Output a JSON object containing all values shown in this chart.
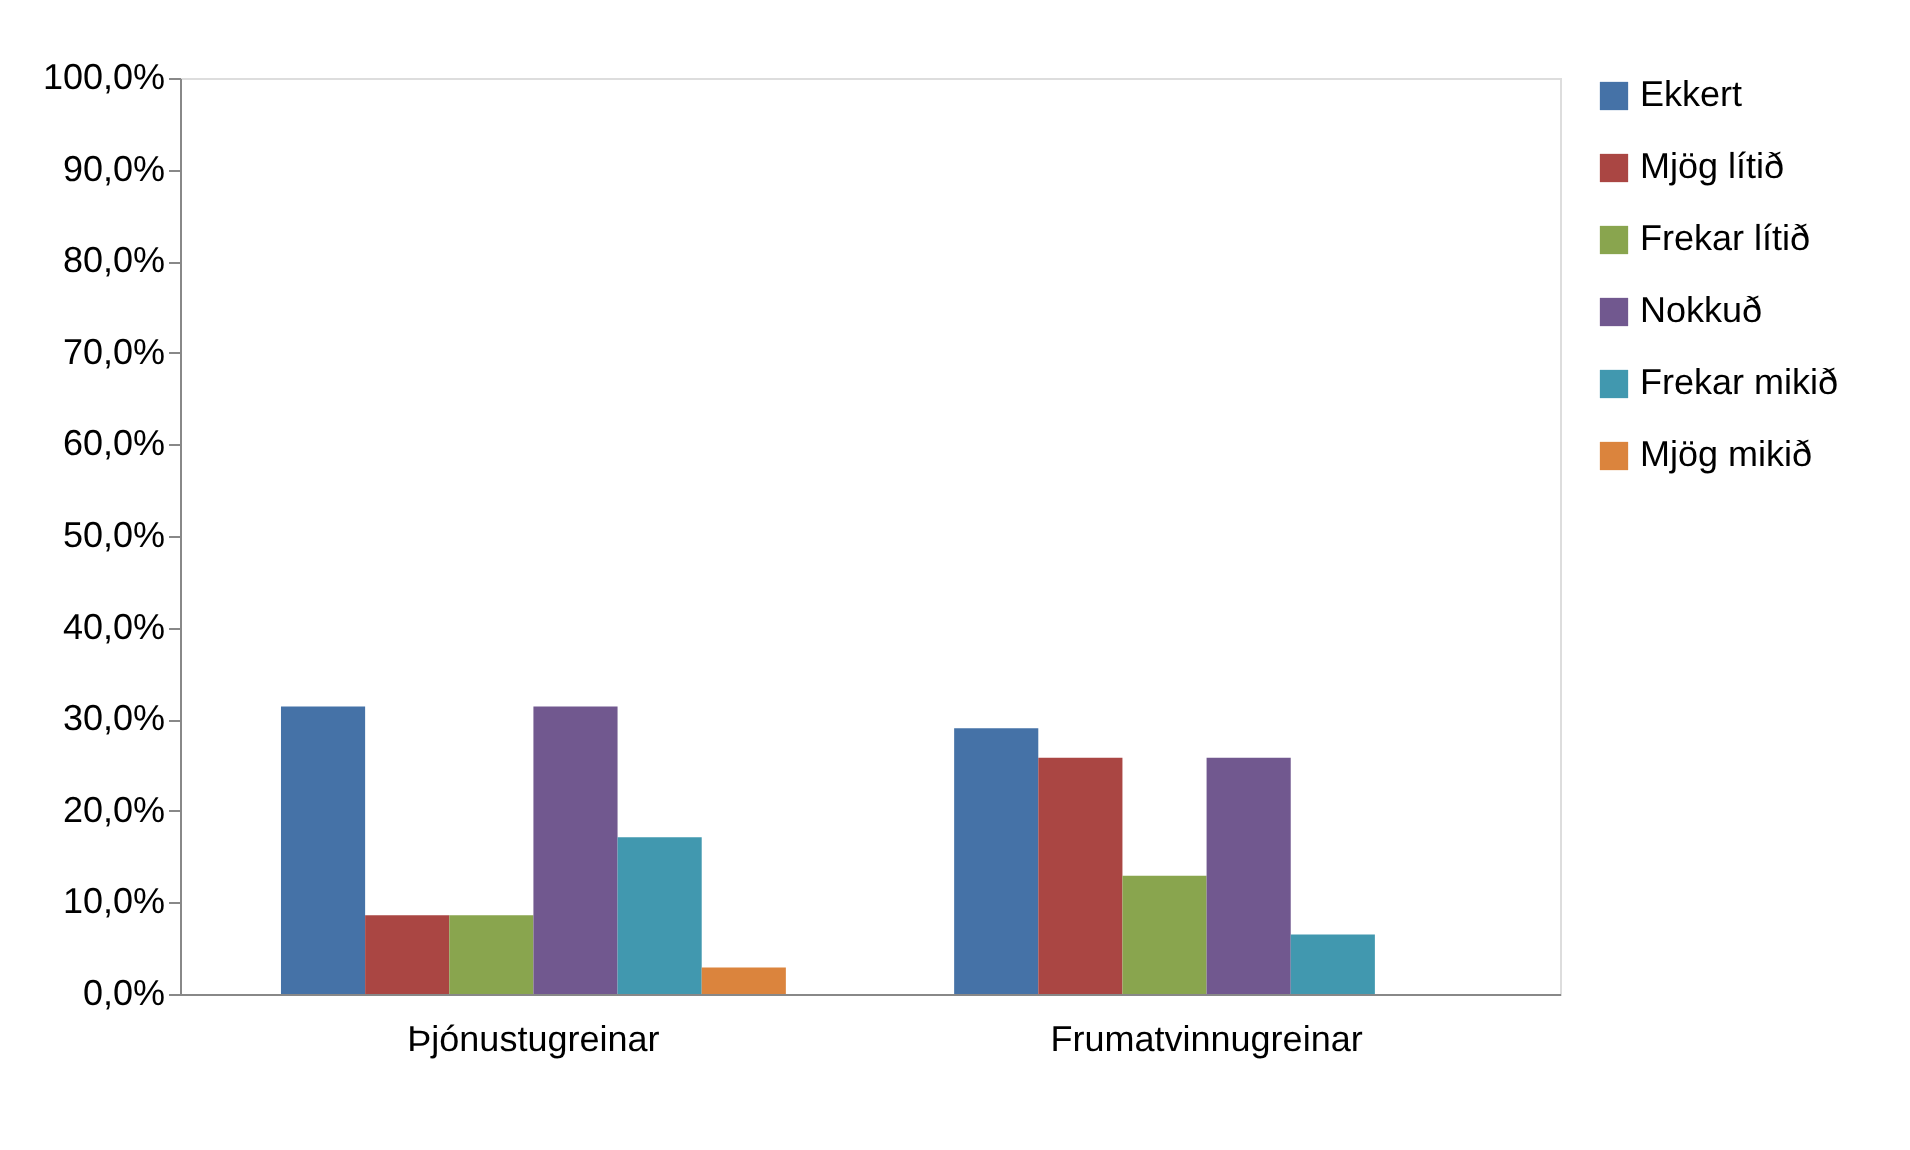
{
  "chart_data": {
    "type": "bar",
    "categories": [
      "Þjónustugreinar",
      "Frumatvinnugreinar"
    ],
    "series": [
      {
        "name": "Ekkert",
        "color": "#4572a7",
        "values": [
          31.4,
          29.0
        ]
      },
      {
        "name": "Mjög lítið",
        "color": "#aa4643",
        "values": [
          8.6,
          25.8
        ]
      },
      {
        "name": "Frekar lítið",
        "color": "#89a54e",
        "values": [
          8.6,
          12.9
        ]
      },
      {
        "name": "Nokkuð",
        "color": "#71588f",
        "values": [
          31.4,
          25.8
        ]
      },
      {
        "name": "Frekar mikið",
        "color": "#4198af",
        "values": [
          17.1,
          6.5
        ]
      },
      {
        "name": "Mjög mikið",
        "color": "#db843d",
        "values": [
          2.9,
          0
        ]
      }
    ],
    "ylim": [
      0,
      100
    ],
    "yticks": [
      {
        "value": 0,
        "label": "0,0%"
      },
      {
        "value": 10,
        "label": "10,0%"
      },
      {
        "value": 20,
        "label": "20,0%"
      },
      {
        "value": 30,
        "label": "30,0%"
      },
      {
        "value": 40,
        "label": "40,0%"
      },
      {
        "value": 50,
        "label": "50,0%"
      },
      {
        "value": 60,
        "label": "60,0%"
      },
      {
        "value": 70,
        "label": "70,0%"
      },
      {
        "value": 80,
        "label": "80,0%"
      },
      {
        "value": 90,
        "label": "90,0%"
      },
      {
        "value": 100,
        "label": "100,0%"
      }
    ],
    "grid": false,
    "legend": "right"
  }
}
